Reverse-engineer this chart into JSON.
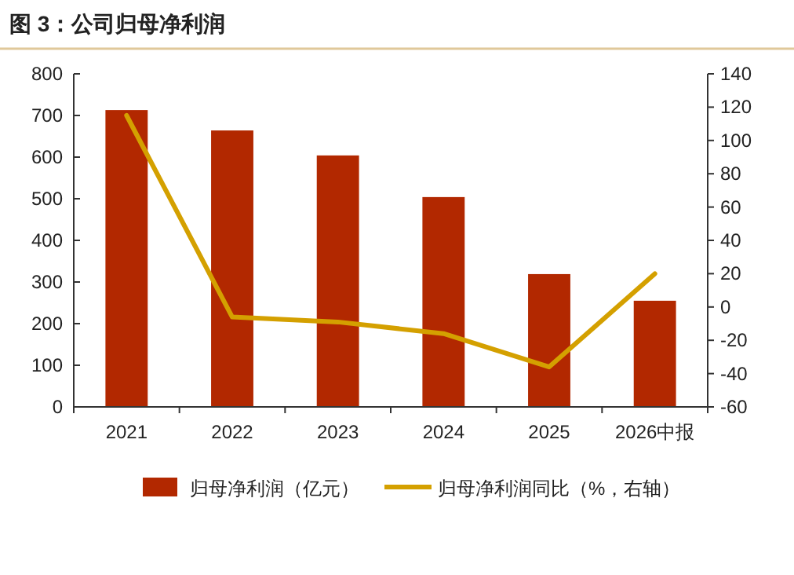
{
  "chart_data": {
    "type": "bar",
    "title": "图 3：公司归母净利润",
    "categories": [
      "2021",
      "2022",
      "2023",
      "2024",
      "2025",
      "2026中报"
    ],
    "series": [
      {
        "name": "归母净利润（亿元）",
        "color": "#b22800",
        "values": [
          713,
          664,
          604,
          504,
          319,
          255
        ]
      },
      {
        "name": "归母净利润同比（%，右轴）",
        "type": "line",
        "axis": "y2",
        "color": "#d4a000",
        "values": [
          115,
          -6,
          -9,
          -16,
          -36,
          20
        ]
      }
    ],
    "ylim": [
      0,
      800
    ],
    "yticks": [
      0,
      100,
      200,
      300,
      400,
      500,
      600,
      700,
      800
    ],
    "y2lim": [
      -60,
      140
    ],
    "y2ticks": [
      -60,
      -40,
      -20,
      0,
      20,
      40,
      60,
      80,
      100,
      120,
      140
    ],
    "legend": "bottom",
    "grid": false
  }
}
